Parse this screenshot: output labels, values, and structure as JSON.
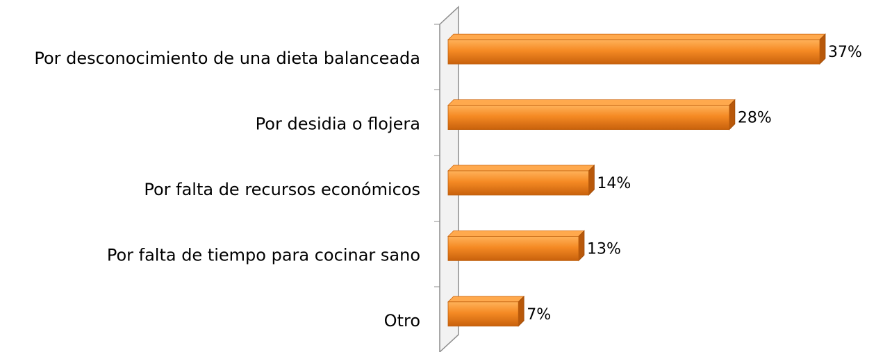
{
  "chart_data": {
    "type": "bar",
    "categories": [
      "Por desconocimiento de una dieta balanceada",
      "Por desidia o flojera",
      "Por falta de recursos económicos",
      "Por falta de tiempo para cocinar sano",
      "Otro"
    ],
    "values": [
      37,
      28,
      14,
      13,
      7
    ],
    "value_labels": [
      "37%",
      "28%",
      "14%",
      "13%",
      "7%"
    ],
    "color": "#f0862a"
  }
}
